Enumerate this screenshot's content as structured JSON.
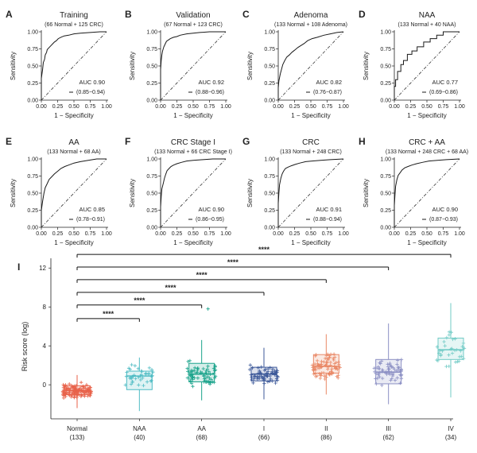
{
  "colors": {
    "axis": "#222222",
    "curve": "#1a1a1a",
    "diagonal": "#333333",
    "Normal": "#e8624a",
    "NAA": "#4fbcc4",
    "AA": "#1aa38b",
    "I": "#3e5a9a",
    "II": "#e98866",
    "III": "#8c90c4",
    "IV": "#72cbc6"
  },
  "chart_data": [
    {
      "type": "line",
      "panel": "A",
      "title": "Training",
      "subtitle": "(66 Normal + 125 CRC)",
      "xlabel": "1 − Specificity",
      "ylabel": "Sensitivity",
      "xlim": [
        0,
        1
      ],
      "ylim": [
        0,
        1
      ],
      "ticks": [
        "0.00",
        "0.25",
        "0.50",
        "0.75",
        "1.00"
      ],
      "auc_label": "AUC 0.90",
      "ci_label": "(0.85−0.94)",
      "curve_x": [
        0,
        0,
        0.02,
        0.03,
        0.05,
        0.06,
        0.08,
        0.09,
        0.12,
        0.15,
        0.17,
        0.2,
        0.23,
        0.26,
        0.3,
        0.35,
        0.42,
        0.5,
        0.6,
        0.75,
        0.9,
        1
      ],
      "curve_y": [
        0,
        0.32,
        0.45,
        0.55,
        0.6,
        0.66,
        0.7,
        0.74,
        0.77,
        0.8,
        0.82,
        0.85,
        0.87,
        0.9,
        0.92,
        0.94,
        0.95,
        0.97,
        0.98,
        0.99,
        1,
        1
      ]
    },
    {
      "type": "line",
      "panel": "B",
      "title": "Validation",
      "subtitle": "(67 Normal + 123 CRC)",
      "xlabel": "1 − Specificity",
      "ylabel": "Sensitivity",
      "xlim": [
        0,
        1
      ],
      "ylim": [
        0,
        1
      ],
      "ticks": [
        "0.00",
        "0.25",
        "0.50",
        "0.75",
        "1.00"
      ],
      "auc_label": "AUC 0.92",
      "ci_label": "(0.88−0.96)",
      "curve_x": [
        0,
        0,
        0.01,
        0.02,
        0.03,
        0.05,
        0.07,
        0.09,
        0.12,
        0.15,
        0.2,
        0.25,
        0.3,
        0.4,
        0.5,
        0.6,
        0.75,
        1
      ],
      "curve_y": [
        0,
        0.45,
        0.58,
        0.66,
        0.72,
        0.78,
        0.82,
        0.86,
        0.88,
        0.9,
        0.92,
        0.93,
        0.95,
        0.97,
        0.98,
        0.99,
        1,
        1
      ]
    },
    {
      "type": "line",
      "panel": "C",
      "title": "Adenoma",
      "subtitle": "(133 Normal + 108 Adenoma)",
      "xlabel": "1 − Specificity",
      "ylabel": "Sensitivity",
      "xlim": [
        0,
        1
      ],
      "ylim": [
        0,
        1
      ],
      "ticks": [
        "0.00",
        "0.25",
        "0.50",
        "0.75",
        "1.00"
      ],
      "auc_label": "AUC 0.82",
      "ci_label": "(0.76−0.87)",
      "curve_x": [
        0,
        0,
        0.01,
        0.03,
        0.05,
        0.07,
        0.1,
        0.13,
        0.17,
        0.21,
        0.25,
        0.3,
        0.35,
        0.4,
        0.45,
        0.52,
        0.6,
        0.7,
        0.8,
        0.9,
        1
      ],
      "curve_y": [
        0,
        0.18,
        0.28,
        0.38,
        0.45,
        0.52,
        0.58,
        0.63,
        0.66,
        0.7,
        0.73,
        0.77,
        0.8,
        0.83,
        0.87,
        0.9,
        0.92,
        0.95,
        0.97,
        0.99,
        1
      ]
    },
    {
      "type": "line",
      "panel": "D",
      "title": "NAA",
      "subtitle": "(133 Normal + 40 NAA)",
      "xlabel": "1 − Specificity",
      "ylabel": "Sensitivity",
      "xlim": [
        0,
        1
      ],
      "ylim": [
        0,
        1
      ],
      "ticks": [
        "0.00",
        "0.25",
        "0.50",
        "0.75",
        "1.00"
      ],
      "auc_label": "AUC 0.77",
      "ci_label": "(0.69−0.86)",
      "curve_x": [
        0,
        0,
        0.02,
        0.02,
        0.05,
        0.05,
        0.1,
        0.1,
        0.14,
        0.14,
        0.2,
        0.2,
        0.27,
        0.27,
        0.35,
        0.35,
        0.45,
        0.45,
        0.55,
        0.55,
        0.65,
        0.65,
        0.75,
        0.75,
        1
      ],
      "curve_y": [
        0,
        0.2,
        0.2,
        0.3,
        0.3,
        0.42,
        0.42,
        0.52,
        0.52,
        0.58,
        0.58,
        0.67,
        0.67,
        0.72,
        0.72,
        0.78,
        0.78,
        0.85,
        0.85,
        0.9,
        0.9,
        0.95,
        0.95,
        1,
        1
      ]
    },
    {
      "type": "line",
      "panel": "E",
      "title": "AA",
      "subtitle": "(133 Normal + 68 AA)",
      "xlabel": "1 − Specificity",
      "ylabel": "Sensitivity",
      "xlim": [
        0,
        1
      ],
      "ylim": [
        0,
        1
      ],
      "ticks": [
        "0.00",
        "0.25",
        "0.50",
        "0.75",
        "1.00"
      ],
      "auc_label": "AUC 0.85",
      "ci_label": "(0.78−0.91)",
      "curve_x": [
        0,
        0,
        0.02,
        0.04,
        0.06,
        0.09,
        0.12,
        0.16,
        0.2,
        0.25,
        0.3,
        0.36,
        0.42,
        0.5,
        0.6,
        0.72,
        0.85,
        1
      ],
      "curve_y": [
        0,
        0.25,
        0.38,
        0.5,
        0.58,
        0.64,
        0.7,
        0.74,
        0.78,
        0.82,
        0.86,
        0.89,
        0.91,
        0.94,
        0.96,
        0.98,
        1,
        1
      ]
    },
    {
      "type": "line",
      "panel": "F",
      "title": "CRC Stage I",
      "subtitle": "(133 Normal + 66 CRC Stage I)",
      "xlabel": "1 − Specificity",
      "ylabel": "Sensitivity",
      "xlim": [
        0,
        1
      ],
      "ylim": [
        0,
        1
      ],
      "ticks": [
        "0.00",
        "0.25",
        "0.50",
        "0.75",
        "1.00"
      ],
      "auc_label": "AUC 0.90",
      "ci_label": "(0.86−0.95)",
      "curve_x": [
        0,
        0,
        0.01,
        0.02,
        0.04,
        0.06,
        0.08,
        0.1,
        0.13,
        0.16,
        0.2,
        0.25,
        0.32,
        0.4,
        0.5,
        0.65,
        0.8,
        1
      ],
      "curve_y": [
        0,
        0.3,
        0.45,
        0.56,
        0.64,
        0.72,
        0.78,
        0.83,
        0.86,
        0.89,
        0.91,
        0.93,
        0.95,
        0.97,
        0.98,
        0.99,
        1,
        1
      ]
    },
    {
      "type": "line",
      "panel": "G",
      "title": "CRC",
      "subtitle": "(133 Normal + 248 CRC)",
      "xlabel": "1 − Specificity",
      "ylabel": "Sensitivity",
      "xlim": [
        0,
        1
      ],
      "ylim": [
        0,
        1
      ],
      "ticks": [
        "0.00",
        "0.25",
        "0.50",
        "0.75",
        "1.00"
      ],
      "auc_label": "AUC 0.91",
      "ci_label": "(0.88−0.94)",
      "curve_x": [
        0,
        0,
        0.01,
        0.02,
        0.04,
        0.06,
        0.08,
        0.11,
        0.15,
        0.2,
        0.26,
        0.33,
        0.42,
        0.52,
        0.65,
        0.8,
        1
      ],
      "curve_y": [
        0,
        0.35,
        0.5,
        0.62,
        0.72,
        0.78,
        0.82,
        0.86,
        0.88,
        0.9,
        0.92,
        0.94,
        0.96,
        0.97,
        0.98,
        0.99,
        1
      ]
    },
    {
      "type": "line",
      "panel": "H",
      "title": "CRC + AA",
      "subtitle": "(133 Normal + 248 CRC + 68 AA)",
      "xlabel": "1 − Specificity",
      "ylabel": "Sensitivity",
      "xlim": [
        0,
        1
      ],
      "ylim": [
        0,
        1
      ],
      "ticks": [
        "0.00",
        "0.25",
        "0.50",
        "0.75",
        "1.00"
      ],
      "auc_label": "AUC 0.90",
      "ci_label": "(0.87−0.93)",
      "curve_x": [
        0,
        0,
        0.01,
        0.02,
        0.04,
        0.06,
        0.09,
        0.12,
        0.16,
        0.21,
        0.27,
        0.34,
        0.43,
        0.53,
        0.66,
        0.8,
        1
      ],
      "curve_y": [
        0,
        0.32,
        0.47,
        0.6,
        0.7,
        0.76,
        0.8,
        0.84,
        0.87,
        0.89,
        0.91,
        0.93,
        0.95,
        0.97,
        0.98,
        0.99,
        1
      ]
    },
    {
      "type": "box",
      "panel": "I",
      "ylabel": "Risk score (log)",
      "ylim": [
        -3.5,
        13
      ],
      "yticks": [
        0,
        4,
        8,
        12
      ],
      "groups": [
        {
          "name": "Normal",
          "n_label": "(133)",
          "n": 133,
          "q1": -1.0,
          "median": -0.6,
          "q3": -0.1,
          "whisker_low": -2.4,
          "whisker_high": 1.0,
          "spread": 0.7
        },
        {
          "name": "NAA",
          "n_label": "(40)",
          "n": 40,
          "q1": -0.5,
          "median": 0.9,
          "q3": 1.4,
          "whisker_low": -2.7,
          "whisker_high": 2.8,
          "spread": 1.1
        },
        {
          "name": "AA",
          "n_label": "(68)",
          "n": 68,
          "q1": 0.3,
          "median": 1.1,
          "q3": 2.2,
          "whisker_low": -1.6,
          "whisker_high": 4.6,
          "spread": 1.2
        },
        {
          "name": "I",
          "n_label": "(66)",
          "n": 66,
          "q1": 0.4,
          "median": 1.1,
          "q3": 1.8,
          "whisker_low": -1.5,
          "whisker_high": 3.8,
          "spread": 1.0
        },
        {
          "name": "II",
          "n_label": "(86)",
          "n": 86,
          "q1": 1.2,
          "median": 1.9,
          "q3": 3.1,
          "whisker_low": -1.0,
          "whisker_high": 5.2,
          "spread": 1.3
        },
        {
          "name": "III",
          "n_label": "(62)",
          "n": 62,
          "q1": 0.1,
          "median": 1.3,
          "q3": 2.6,
          "whisker_low": -2.0,
          "whisker_high": 6.3,
          "spread": 1.6
        },
        {
          "name": "IV",
          "n_label": "(34)",
          "n": 34,
          "q1": 2.6,
          "median": 3.6,
          "q3": 4.8,
          "whisker_low": -1.3,
          "whisker_high": 8.4,
          "spread": 1.7
        }
      ],
      "outliers": [
        {
          "group": "AA",
          "value": 7.8
        }
      ],
      "comparisons": [
        {
          "from": "Normal",
          "to": "NAA",
          "y": 6.8,
          "label": "****"
        },
        {
          "from": "Normal",
          "to": "AA",
          "y": 8.2,
          "label": "****"
        },
        {
          "from": "Normal",
          "to": "I",
          "y": 9.5,
          "label": "****"
        },
        {
          "from": "Normal",
          "to": "II",
          "y": 10.8,
          "label": "****"
        },
        {
          "from": "Normal",
          "to": "III",
          "y": 12.1,
          "label": "****"
        },
        {
          "from": "Normal",
          "to": "IV",
          "y": 13.4,
          "label": "****"
        }
      ]
    }
  ]
}
